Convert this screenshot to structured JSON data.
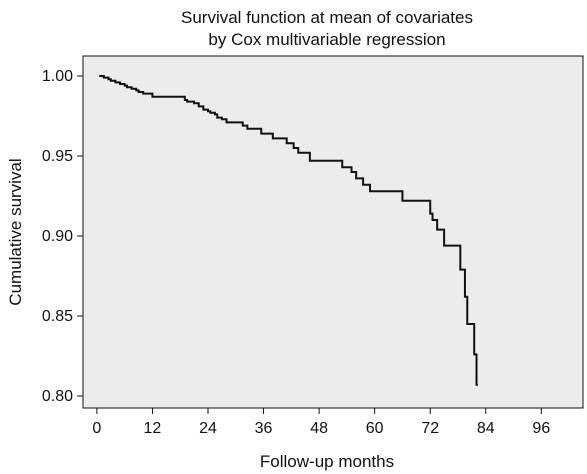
{
  "chart_data": {
    "type": "line",
    "step": true,
    "title": [
      "Survival function at mean of covariates",
      "by Cox multivariable regression"
    ],
    "xlabel": "Follow-up months",
    "ylabel": "Cumulative survival",
    "xlim": [
      -3,
      105
    ],
    "ylim": [
      0.7925,
      1.0125
    ],
    "xticks": [
      0,
      12,
      24,
      36,
      48,
      60,
      72,
      84,
      96
    ],
    "yticks": [
      0.8,
      0.85,
      0.9,
      0.95,
      1.0
    ],
    "ytick_labels": [
      "0.80",
      "0.85",
      "0.90",
      "0.95",
      "1.00"
    ],
    "grid": false,
    "colors": {
      "plot_background": "#ececec",
      "line": "#111111"
    },
    "series": [
      {
        "x": [
          0.5,
          1.5,
          2.5,
          3.0,
          4.0,
          5.0,
          6.0,
          6.5,
          7.5,
          8.5,
          9.0,
          10.0,
          12.0,
          19.0,
          19.5,
          21.0,
          22.0,
          23.0,
          24.0,
          24.5,
          25.5,
          26.0,
          27.0,
          28.0,
          31.5,
          32.5,
          35.5,
          38.0,
          41.0,
          42.5,
          43.5,
          46.0,
          53.0,
          55.0,
          56.0,
          57.5,
          59.0,
          66.0,
          72.0,
          72.5,
          73.5,
          75.0,
          78.5,
          79.5,
          80.0,
          80.5,
          81.5,
          82.0,
          82.3
        ],
        "y": [
          1.0,
          0.999,
          0.998,
          0.997,
          0.996,
          0.995,
          0.994,
          0.993,
          0.992,
          0.991,
          0.99,
          0.989,
          0.987,
          0.985,
          0.984,
          0.983,
          0.981,
          0.979,
          0.978,
          0.977,
          0.976,
          0.974,
          0.973,
          0.971,
          0.969,
          0.967,
          0.964,
          0.961,
          0.958,
          0.955,
          0.952,
          0.947,
          0.943,
          0.94,
          0.936,
          0.932,
          0.928,
          0.922,
          0.914,
          0.91,
          0.904,
          0.894,
          0.879,
          0.862,
          0.845,
          0.845,
          0.826,
          0.807,
          0.807
        ]
      }
    ]
  }
}
